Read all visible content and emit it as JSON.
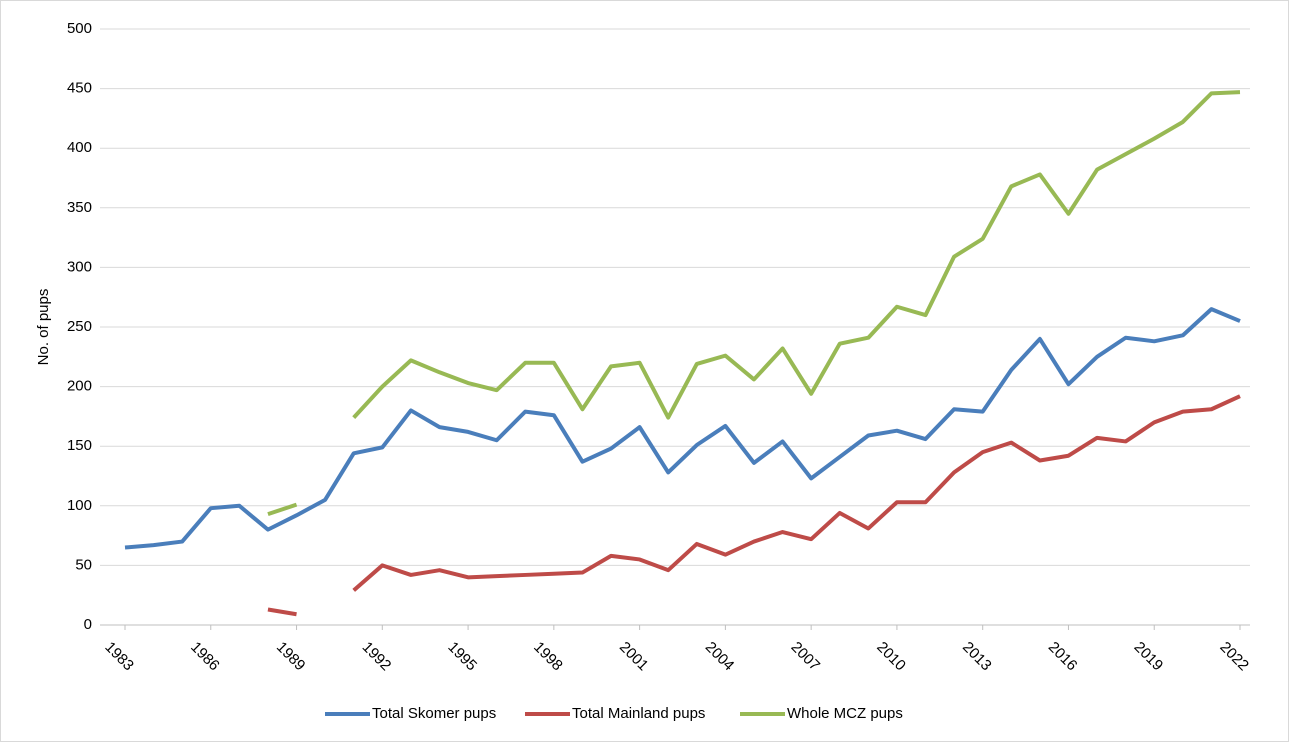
{
  "chart_data": {
    "type": "line",
    "y_label": "No. of pups",
    "x": [
      1983,
      1984,
      1985,
      1986,
      1987,
      1988,
      1989,
      1990,
      1991,
      1992,
      1993,
      1994,
      1995,
      1996,
      1997,
      1998,
      1999,
      2000,
      2001,
      2002,
      2003,
      2004,
      2005,
      2006,
      2007,
      2008,
      2009,
      2010,
      2011,
      2012,
      2013,
      2014,
      2015,
      2016,
      2017,
      2018,
      2019,
      2020,
      2021,
      2022
    ],
    "xlim": [
      1983,
      2022
    ],
    "xticks": [
      1983,
      1986,
      1989,
      1992,
      1995,
      1998,
      2001,
      2004,
      2007,
      2010,
      2013,
      2016,
      2019,
      2022
    ],
    "ylim": [
      0,
      500
    ],
    "yticks": [
      0,
      50,
      100,
      150,
      200,
      250,
      300,
      350,
      400,
      450,
      500
    ],
    "grid": true,
    "legend": "bottom",
    "series": [
      {
        "name": "Total Skomer pups",
        "color": "#4a7ebb",
        "values": [
          65,
          67,
          70,
          98,
          100,
          80,
          92,
          105,
          144,
          149,
          180,
          166,
          162,
          155,
          179,
          176,
          137,
          148,
          166,
          128,
          151,
          167,
          136,
          154,
          123,
          141,
          159,
          163,
          156,
          181,
          179,
          214,
          240,
          202,
          225,
          241,
          238,
          243,
          265,
          255
        ]
      },
      {
        "name": "Total Mainland pups",
        "color": "#be4b48",
        "values": [
          null,
          null,
          null,
          null,
          null,
          13,
          9,
          null,
          29,
          50,
          42,
          46,
          40,
          41,
          42,
          43,
          44,
          58,
          55,
          46,
          68,
          59,
          70,
          78,
          72,
          94,
          81,
          103,
          103,
          128,
          145,
          153,
          138,
          142,
          157,
          154,
          170,
          179,
          181,
          192
        ]
      },
      {
        "name": "Whole MCZ pups",
        "color": "#98b954",
        "values": [
          null,
          null,
          null,
          null,
          null,
          93,
          101,
          null,
          174,
          200,
          222,
          212,
          203,
          197,
          220,
          220,
          181,
          217,
          220,
          174,
          219,
          226,
          206,
          232,
          194,
          236,
          241,
          267,
          260,
          309,
          324,
          368,
          378,
          345,
          382,
          395,
          408,
          422,
          446,
          447
        ]
      }
    ]
  }
}
